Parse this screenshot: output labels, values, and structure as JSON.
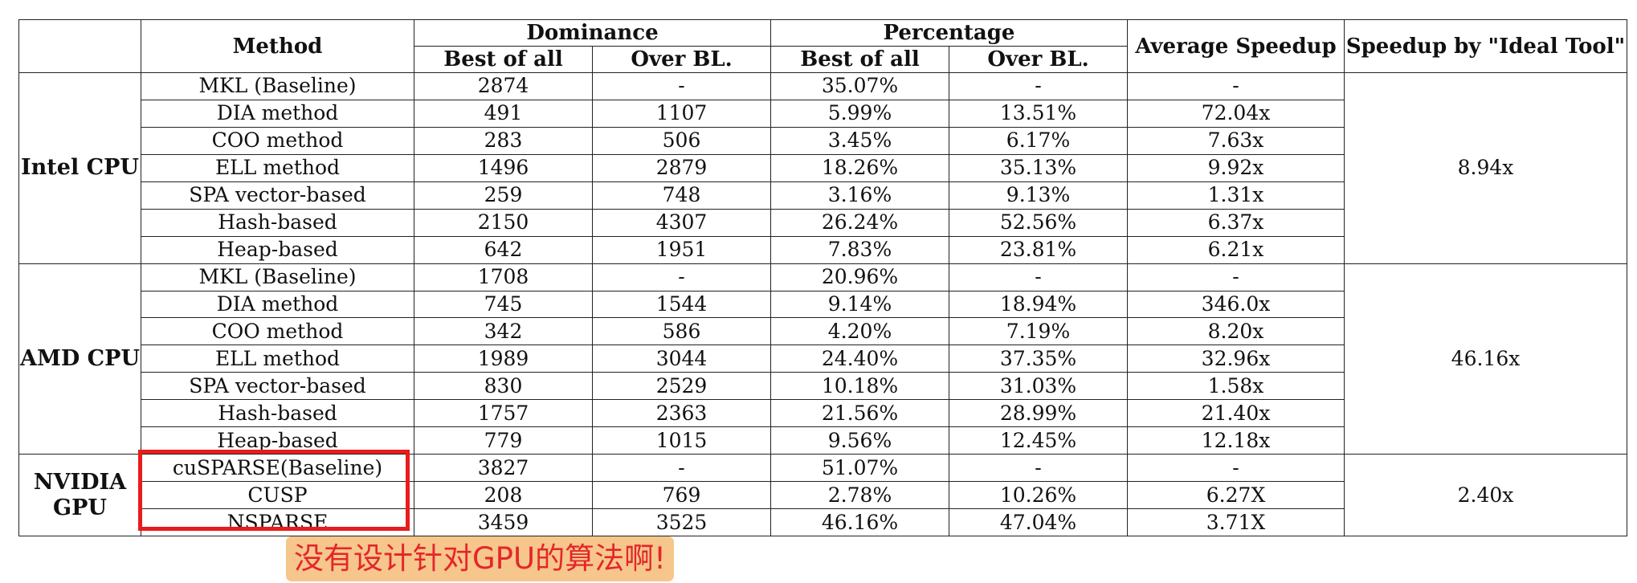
{
  "header": {
    "method": "Method",
    "dominance": "Dominance",
    "percentage": "Percentage",
    "average_speedup": "Average Speedup",
    "ideal_speedup": "Speedup by \"Ideal Tool\"",
    "best_of_all": "Best of all",
    "over_bl": "Over BL."
  },
  "groups": [
    {
      "name": "Intel CPU",
      "ideal": "8.94x",
      "rows": [
        [
          "MKL (Baseline)",
          "2874",
          "-",
          "35.07%",
          "-",
          "-"
        ],
        [
          "DIA method",
          "491",
          "1107",
          "5.99%",
          "13.51%",
          "72.04x"
        ],
        [
          "COO method",
          "283",
          "506",
          "3.45%",
          "6.17%",
          "7.63x"
        ],
        [
          "ELL method",
          "1496",
          "2879",
          "18.26%",
          "35.13%",
          "9.92x"
        ],
        [
          "SPA vector-based",
          "259",
          "748",
          "3.16%",
          "9.13%",
          "1.31x"
        ],
        [
          "Hash-based",
          "2150",
          "4307",
          "26.24%",
          "52.56%",
          "6.37x"
        ],
        [
          "Heap-based",
          "642",
          "1951",
          "7.83%",
          "23.81%",
          "6.21x"
        ]
      ]
    },
    {
      "name": "AMD CPU",
      "ideal": "46.16x",
      "rows": [
        [
          "MKL (Baseline)",
          "1708",
          "-",
          "20.96%",
          "-",
          "-"
        ],
        [
          "DIA method",
          "745",
          "1544",
          "9.14%",
          "18.94%",
          "346.0x"
        ],
        [
          "COO method",
          "342",
          "586",
          "4.20%",
          "7.19%",
          "8.20x"
        ],
        [
          "ELL method",
          "1989",
          "3044",
          "24.40%",
          "37.35%",
          "32.96x"
        ],
        [
          "SPA vector-based",
          "830",
          "2529",
          "10.18%",
          "31.03%",
          "1.58x"
        ],
        [
          "Hash-based",
          "1757",
          "2363",
          "21.56%",
          "28.99%",
          "21.40x"
        ],
        [
          "Heap-based",
          "779",
          "1015",
          "9.56%",
          "12.45%",
          "12.18x"
        ]
      ]
    },
    {
      "name": "NVIDIA GPU",
      "ideal": "2.40x",
      "rows": [
        [
          "cuSPARSE(Baseline)",
          "3827",
          "-",
          "51.07%",
          "-",
          "-"
        ],
        [
          "CUSP",
          "208",
          "769",
          "2.78%",
          "10.26%",
          "6.27X"
        ],
        [
          "NSPARSE",
          "3459",
          "3525",
          "46.16%",
          "47.04%",
          "3.71X"
        ]
      ]
    }
  ],
  "annotation": {
    "text": "没有设计针对GPU的算法啊!",
    "box_color": "#e81c1c",
    "label_bg": "#f6c68c",
    "label_color": "#e4262a"
  }
}
